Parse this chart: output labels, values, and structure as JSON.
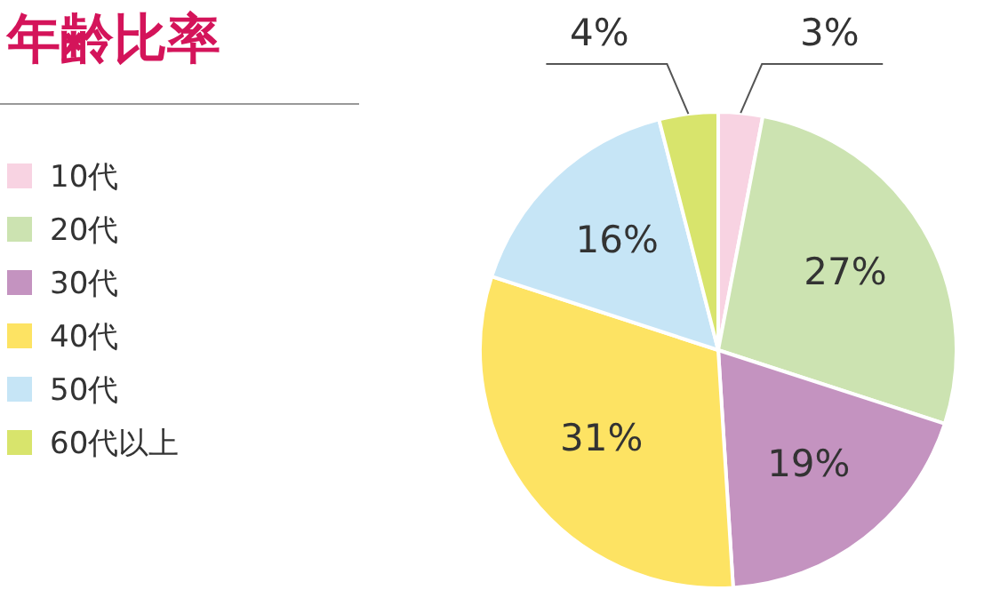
{
  "chart_data": {
    "type": "pie",
    "title": "年齢比率",
    "categories": [
      "10代",
      "20代",
      "30代",
      "40代",
      "50代",
      "60代以上"
    ],
    "values": [
      3,
      27,
      19,
      31,
      16,
      4
    ],
    "colors": [
      "#f8d3e2",
      "#cce3b1",
      "#c493c0",
      "#fde363",
      "#c6e5f6",
      "#d8e46c"
    ],
    "value_labels": [
      "3%",
      "27%",
      "19%",
      "31%",
      "16%",
      "4%"
    ],
    "legend": "left"
  }
}
